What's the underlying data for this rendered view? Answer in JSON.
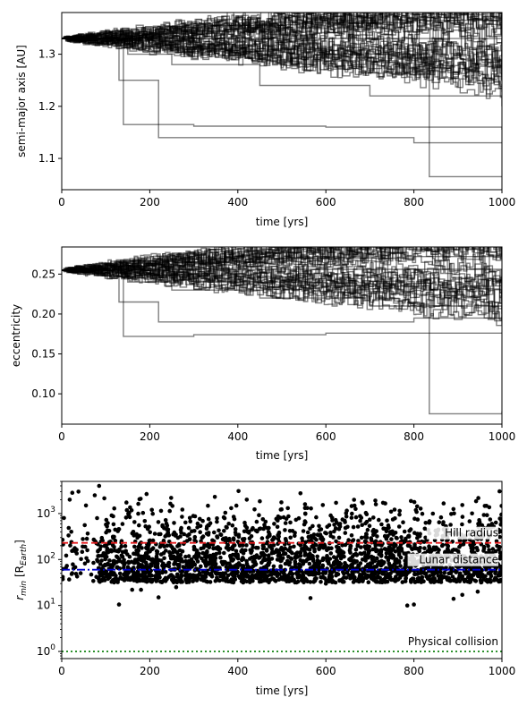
{
  "chart_data": [
    {
      "type": "line",
      "xlabel": "time [yrs]",
      "ylabel": "semi-major axis [AU]",
      "xlim": [
        0,
        1000
      ],
      "ylim": [
        1.04,
        1.38
      ],
      "xticks": [
        0,
        200,
        400,
        600,
        800,
        1000
      ],
      "yticks": [
        1.1,
        1.2,
        1.3
      ],
      "xtick_labels": [
        "0",
        "200",
        "400",
        "600",
        "800",
        "1000"
      ],
      "ytick_labels": [
        "1.1",
        "1.2",
        "1.3"
      ],
      "grid": false,
      "color": "#000000",
      "line_opacity": 0.5,
      "ensemble": {
        "count": 40,
        "initial_value": 1.33,
        "representative_tracks": [
          {
            "x": [
              0,
              20,
              40,
              60,
              90,
              120,
              1000
            ],
            "y": [
              1.33,
              1.323,
              1.327,
              1.322,
              1.335,
              1.33,
              1.33
            ]
          },
          {
            "x": [
              0,
              130,
              140,
              300,
              600,
              1000
            ],
            "y": [
              1.33,
              1.33,
              1.165,
              1.162,
              1.16,
              1.155
            ]
          },
          {
            "x": [
              0,
              130,
              300,
              600,
              780,
              835,
              1000
            ],
            "y": [
              1.33,
              1.33,
              1.31,
              1.3,
              1.3,
              1.065,
              1.065
            ]
          },
          {
            "x": [
              0,
              130,
              200,
              220,
              400,
              800,
              1000
            ],
            "y": [
              1.33,
              1.25,
              1.25,
              1.14,
              1.14,
              1.13,
              1.13
            ]
          },
          {
            "x": [
              0,
              150,
              250,
              450,
              700,
              1000
            ],
            "y": [
              1.33,
              1.3,
              1.28,
              1.24,
              1.22,
              1.2
            ]
          },
          {
            "x": [
              0,
              100,
              300,
              500,
              800,
              1000
            ],
            "y": [
              1.33,
              1.34,
              1.355,
              1.36,
              1.365,
              1.37
            ]
          }
        ]
      }
    },
    {
      "type": "line",
      "xlabel": "time [yrs]",
      "ylabel": "eccentricity",
      "xlim": [
        0,
        1000
      ],
      "ylim": [
        0.062,
        0.284
      ],
      "xticks": [
        0,
        200,
        400,
        600,
        800,
        1000
      ],
      "yticks": [
        0.1,
        0.15,
        0.2,
        0.25
      ],
      "xtick_labels": [
        "0",
        "200",
        "400",
        "600",
        "800",
        "1000"
      ],
      "ytick_labels": [
        "0.10",
        "0.15",
        "0.20",
        "0.25"
      ],
      "grid": false,
      "color": "#000000",
      "line_opacity": 0.5,
      "ensemble": {
        "count": 40,
        "initial_value": 0.255,
        "representative_tracks": [
          {
            "x": [
              0,
              20,
              40,
              60,
              90,
              120,
              1000
            ],
            "y": [
              0.255,
              0.253,
              0.256,
              0.253,
              0.26,
              0.256,
              0.256
            ]
          },
          {
            "x": [
              0,
              130,
              140,
              300,
              600,
              1000
            ],
            "y": [
              0.255,
              0.255,
              0.172,
              0.174,
              0.176,
              0.177
            ]
          },
          {
            "x": [
              0,
              130,
              300,
              600,
              780,
              835,
              1000
            ],
            "y": [
              0.255,
              0.255,
              0.24,
              0.235,
              0.235,
              0.075,
              0.078
            ]
          },
          {
            "x": [
              0,
              130,
              200,
              220,
              400,
              800,
              1000
            ],
            "y": [
              0.255,
              0.215,
              0.215,
              0.19,
              0.19,
              0.195,
              0.195
            ]
          },
          {
            "x": [
              0,
              150,
              250,
              450,
              700,
              1000
            ],
            "y": [
              0.255,
              0.24,
              0.23,
              0.22,
              0.21,
              0.2
            ]
          },
          {
            "x": [
              0,
              100,
              300,
              500,
              800,
              1000
            ],
            "y": [
              0.255,
              0.26,
              0.265,
              0.27,
              0.272,
              0.274
            ]
          }
        ]
      }
    },
    {
      "type": "scatter",
      "xlabel": "time [yrs]",
      "ylabel_main": "r",
      "ylabel_sub_min": "min",
      "ylabel_unit_open": " [R",
      "ylabel_sub_unit": "Earth",
      "ylabel_unit_close": "]",
      "xlim": [
        0,
        1000
      ],
      "ylim": [
        0.7,
        5000
      ],
      "yscale": "log",
      "xticks": [
        0,
        200,
        400,
        600,
        800,
        1000
      ],
      "xtick_labels": [
        "0",
        "200",
        "400",
        "600",
        "800",
        "1000"
      ],
      "yticks": [
        1,
        10,
        100,
        1000
      ],
      "ytick_base": "10",
      "ytick_exponents": [
        "0",
        "1",
        "2",
        "3"
      ],
      "grid": false,
      "marker_color": "#000000",
      "points_sample": [
        [
          5,
          800
        ],
        [
          18,
          2000
        ],
        [
          38,
          3000
        ],
        [
          55,
          1500
        ],
        [
          75,
          2500
        ],
        [
          85,
          4000
        ],
        [
          130,
          10.5
        ],
        [
          160,
          22
        ],
        [
          180,
          22
        ],
        [
          200,
          60
        ],
        [
          220,
          15
        ],
        [
          260,
          25
        ],
        [
          300,
          40
        ],
        [
          350,
          80
        ],
        [
          400,
          120
        ],
        [
          565,
          14.5
        ],
        [
          600,
          30
        ],
        [
          680,
          40
        ],
        [
          750,
          60
        ],
        [
          785,
          10
        ],
        [
          800,
          10.5
        ],
        [
          890,
          14
        ],
        [
          910,
          17
        ],
        [
          945,
          20
        ],
        [
          985,
          40
        ],
        [
          995,
          45
        ]
      ],
      "reference_lines": [
        {
          "label": "Hill radius",
          "y": 230,
          "color": "#e41a1c",
          "style": "dashed"
        },
        {
          "label": "Lunar distance",
          "y": 60,
          "color": "#0000cc",
          "style": "dashdot"
        },
        {
          "label": "Physical collision",
          "y": 1,
          "color": "#228b22",
          "style": "dotted"
        }
      ]
    }
  ]
}
